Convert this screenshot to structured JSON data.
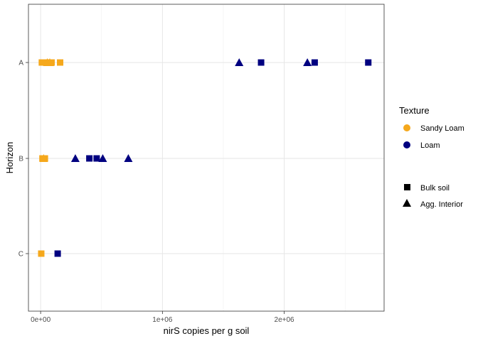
{
  "chart_data": {
    "type": "scatter",
    "xlabel": "nirS copies per g soil",
    "ylabel": "Horizon",
    "categories": [
      "C",
      "B",
      "A"
    ],
    "xlim": [
      -100000,
      2820000
    ],
    "x_ticks": [
      {
        "value": 0,
        "label": "0e+00"
      },
      {
        "value": 1000000,
        "label": "1e+06"
      },
      {
        "value": 2000000,
        "label": "2e+06"
      }
    ],
    "grid": true,
    "legend_position": "right",
    "texture_legend": {
      "title": "Texture",
      "entries": [
        {
          "label": "Sandy Loam",
          "color": "#f5a81c"
        },
        {
          "label": "Loam",
          "color": "#000080"
        }
      ]
    },
    "type_legend": {
      "entries": [
        {
          "label": "Bulk soil",
          "shape": "square"
        },
        {
          "label": "Agg. Interior",
          "shape": "triangle"
        }
      ]
    },
    "points": [
      {
        "horizon": "A",
        "x": 10000,
        "texture": "Sandy Loam",
        "type": "Bulk soil"
      },
      {
        "horizon": "A",
        "x": 40000,
        "texture": "Sandy Loam",
        "type": "Bulk soil"
      },
      {
        "horizon": "A",
        "x": 55000,
        "texture": "Sandy Loam",
        "type": "Agg. Interior"
      },
      {
        "horizon": "A",
        "x": 75000,
        "texture": "Sandy Loam",
        "type": "Agg. Interior"
      },
      {
        "horizon": "A",
        "x": 90000,
        "texture": "Sandy Loam",
        "type": "Bulk soil"
      },
      {
        "horizon": "A",
        "x": 160000,
        "texture": "Sandy Loam",
        "type": "Bulk soil"
      },
      {
        "horizon": "A",
        "x": 1630000,
        "texture": "Loam",
        "type": "Agg. Interior"
      },
      {
        "horizon": "A",
        "x": 1810000,
        "texture": "Loam",
        "type": "Bulk soil"
      },
      {
        "horizon": "A",
        "x": 2190000,
        "texture": "Loam",
        "type": "Agg. Interior"
      },
      {
        "horizon": "A",
        "x": 2250000,
        "texture": "Loam",
        "type": "Bulk soil"
      },
      {
        "horizon": "A",
        "x": 2690000,
        "texture": "Loam",
        "type": "Bulk soil"
      },
      {
        "horizon": "B",
        "x": 15000,
        "texture": "Sandy Loam",
        "type": "Bulk soil"
      },
      {
        "horizon": "B",
        "x": 25000,
        "texture": "Sandy Loam",
        "type": "Agg. Interior"
      },
      {
        "horizon": "B",
        "x": 35000,
        "texture": "Sandy Loam",
        "type": "Bulk soil"
      },
      {
        "horizon": "B",
        "x": 285000,
        "texture": "Loam",
        "type": "Agg. Interior"
      },
      {
        "horizon": "B",
        "x": 400000,
        "texture": "Loam",
        "type": "Bulk soil"
      },
      {
        "horizon": "B",
        "x": 460000,
        "texture": "Loam",
        "type": "Bulk soil"
      },
      {
        "horizon": "B",
        "x": 510000,
        "texture": "Loam",
        "type": "Agg. Interior"
      },
      {
        "horizon": "B",
        "x": 720000,
        "texture": "Loam",
        "type": "Agg. Interior"
      },
      {
        "horizon": "C",
        "x": 5000,
        "texture": "Sandy Loam",
        "type": "Bulk soil"
      },
      {
        "horizon": "C",
        "x": 140000,
        "texture": "Loam",
        "type": "Bulk soil"
      }
    ]
  }
}
